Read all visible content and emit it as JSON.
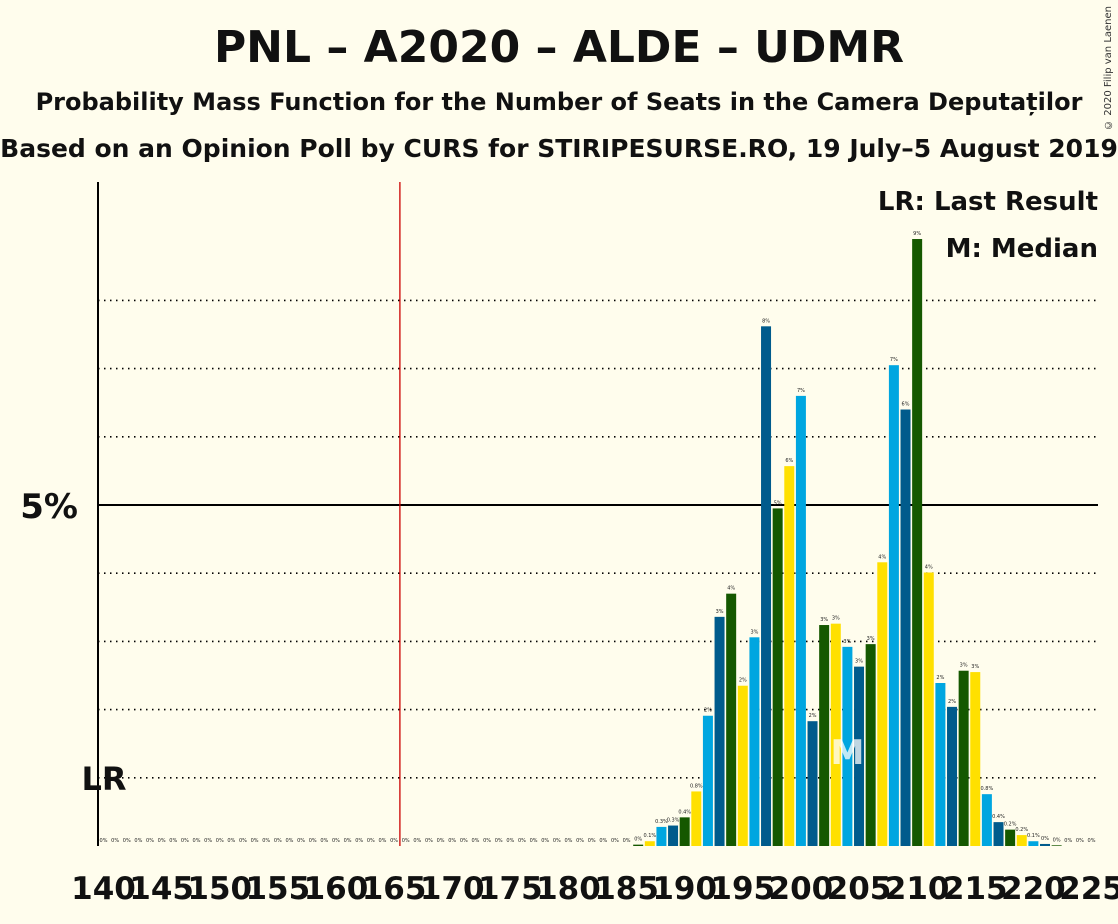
{
  "header": {
    "title": "PNL – A2020 – ALDE – UDMR",
    "subtitle": "Probability Mass Function for the Number of Seats in the Camera Deputaților",
    "source": "Based on an Opinion Poll by CURS for STIRIPESURSE.RO, 19 July–5 August 2019",
    "copyright": "© 2020 Filip van Laenen"
  },
  "legend": {
    "last_result": "LR: Last Result",
    "median": "M: Median",
    "placement": "top-right"
  },
  "colors": {
    "background": "#fffded",
    "light_blue": "#00a6e0",
    "dark_blue": "#005b8c",
    "green": "#155800",
    "yellow": "#ffe000",
    "last_result_line": "#cc0000"
  },
  "chart_data": {
    "type": "bar",
    "x_start": 140,
    "x_end": 225,
    "x_tick_step": 5,
    "x_ticks": [
      "140",
      "145",
      "150",
      "155",
      "160",
      "165",
      "170",
      "175",
      "180",
      "185",
      "190",
      "195",
      "200",
      "205",
      "210",
      "215",
      "220",
      "225"
    ],
    "y_tick_labels": [
      {
        "value": 5,
        "label": "5%"
      }
    ],
    "ylim": [
      0,
      9.5
    ],
    "last_result": {
      "seat": 166,
      "label": "LR"
    },
    "median": {
      "seat": 204,
      "label": "M"
    },
    "grid": "dotted lines every 1%, solid line at 5%",
    "seats": [
      140,
      141,
      142,
      143,
      144,
      145,
      146,
      147,
      148,
      149,
      150,
      151,
      152,
      153,
      154,
      155,
      156,
      157,
      158,
      159,
      160,
      161,
      162,
      163,
      164,
      165,
      166,
      167,
      168,
      169,
      170,
      171,
      172,
      173,
      174,
      175,
      176,
      177,
      178,
      179,
      180,
      181,
      182,
      183,
      184,
      185,
      186,
      187,
      188,
      189,
      190,
      191,
      192,
      193,
      194,
      195,
      196,
      197,
      198,
      199,
      200,
      201,
      202,
      203,
      204,
      205,
      206,
      207,
      208,
      209,
      210,
      211,
      212,
      213,
      214,
      215,
      216,
      217,
      218,
      219,
      220,
      221,
      222,
      223,
      224,
      225
    ],
    "values": [
      0,
      0,
      0,
      0,
      0,
      0,
      0,
      0,
      0,
      0,
      0,
      0,
      0,
      0,
      0,
      0,
      0,
      0,
      0,
      0,
      0,
      0,
      0,
      0,
      0,
      0,
      0,
      0,
      0,
      0,
      0,
      0,
      0,
      0,
      0,
      0,
      0,
      0,
      0,
      0,
      0,
      0,
      0,
      0,
      0,
      0,
      0.02,
      0.07,
      0.28,
      0.3,
      0.42,
      0.8,
      1.91,
      3.36,
      3.7,
      2.35,
      3.06,
      7.62,
      4.95,
      5.57,
      6.6,
      1.83,
      3.24,
      3.26,
      2.92,
      2.63,
      2.96,
      4.16,
      7.05,
      6.4,
      8.9,
      4.01,
      2.39,
      2.04,
      2.57,
      2.55,
      0.76,
      0.35,
      0.24,
      0.16,
      0.07,
      0.03,
      0.01,
      0,
      0,
      0
    ],
    "labels": [
      "0%",
      "0%",
      "0%",
      "0%",
      "0%",
      "0%",
      "0%",
      "0%",
      "0%",
      "0%",
      "0%",
      "0%",
      "0%",
      "0%",
      "0%",
      "0%",
      "0%",
      "0%",
      "0%",
      "0%",
      "0%",
      "0%",
      "0%",
      "0%",
      "0%",
      "0%",
      "0%",
      "0%",
      "0%",
      "0%",
      "0%",
      "0%",
      "0%",
      "0%",
      "0%",
      "0%",
      "0%",
      "0%",
      "0%",
      "0%",
      "0%",
      "0%",
      "0%",
      "0%",
      "0%",
      "0%",
      "0%",
      "0.1%",
      "0.3%",
      "0.3%",
      "0.4%",
      "0.8%",
      "2%",
      "3%",
      "4%",
      "2%",
      "3%",
      "8%",
      "5%",
      "6%",
      "7%",
      "2%",
      "3%",
      "3%",
      "3%",
      "3%",
      "3%",
      "4%",
      "7%",
      "6%",
      "9%",
      "4%",
      "2%",
      "2%",
      "3%",
      "3%",
      "0.8%",
      "0.4%",
      "0.2%",
      "0.2%",
      "0.1%",
      "0%",
      "0%",
      "0%",
      "0%",
      "0%"
    ]
  }
}
